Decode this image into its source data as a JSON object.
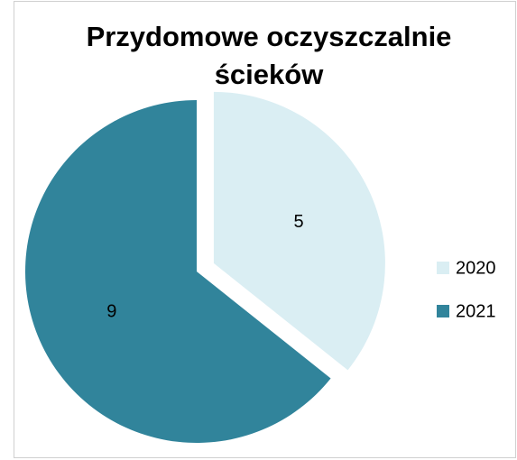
{
  "chart_data": {
    "type": "pie",
    "title": [
      "Przydomowe oczyszczalnie",
      "ścieków"
    ],
    "categories": [
      "2020",
      "2021"
    ],
    "values": [
      5,
      9
    ],
    "colors": [
      "#daeef3",
      "#31849b"
    ],
    "legend": "right"
  }
}
